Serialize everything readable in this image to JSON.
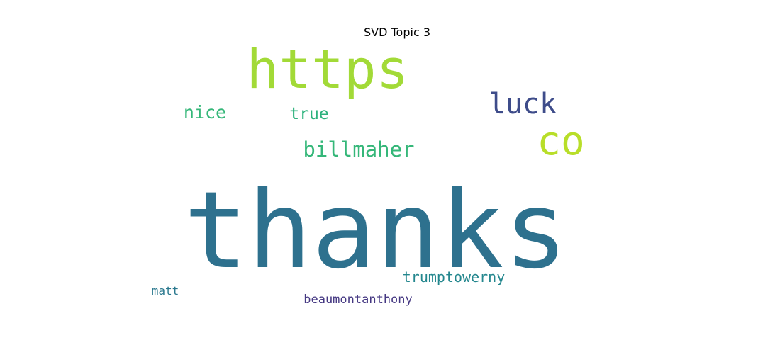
{
  "chart_data": {
    "type": "wordcloud",
    "title": "SVD Topic 3",
    "words": [
      {
        "text": "thanks",
        "weight": 1.0,
        "color": "#2e718e"
      },
      {
        "text": "https",
        "weight": 0.52,
        "color": "#a2da37"
      },
      {
        "text": "co",
        "weight": 0.38,
        "color": "#b8de29"
      },
      {
        "text": "luck",
        "weight": 0.28,
        "color": "#3e4c8a"
      },
      {
        "text": "billmaher",
        "weight": 0.2,
        "color": "#35b779"
      },
      {
        "text": "nice",
        "weight": 0.17,
        "color": "#35b779"
      },
      {
        "text": "true",
        "weight": 0.15,
        "color": "#2db27d"
      },
      {
        "text": "trumptowerny",
        "weight": 0.13,
        "color": "#24878e"
      },
      {
        "text": "beaumontanthony",
        "weight": 0.11,
        "color": "#453882"
      },
      {
        "text": "matt",
        "weight": 0.1,
        "color": "#2a788e"
      }
    ]
  }
}
